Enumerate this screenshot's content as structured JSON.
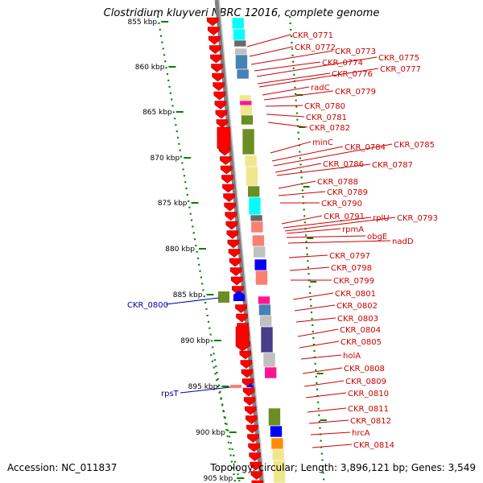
{
  "title": "Clostridium kluyveri NBRC 12016, complete genome",
  "accession_text": "Accession: NC_011837",
  "summary_text": "Topology: circular; Length: 3,896,121 bp; Genes: 3,549",
  "colors": {
    "forward_cds": "#ff0000",
    "reverse_cds": "#0000ff",
    "backbone": "#808080",
    "tick": "#008000",
    "label_forward": "#cc0000",
    "label_reverse": "#0000aa",
    "cog_palette": [
      "#00ffff",
      "#ff1493",
      "#4682b4",
      "#6b8e23",
      "#f0e68c",
      "#c0c0c0",
      "#0000ff",
      "#ff8c00",
      "#483d8b",
      "#fa8072",
      "#696969"
    ]
  },
  "axis_labels": [
    "855 kbp",
    "860 kbp",
    "865 kbp",
    "870 kbp",
    "875 kbp",
    "880 kbp",
    "885 kbp",
    "890 kbp",
    "895 kbp",
    "900 kbp",
    "905 kbp"
  ],
  "forward_labels": [
    "CKR_0771",
    "CKR_0772",
    "CKR_0773",
    "CKR_0774",
    "CKR_0775",
    "CKR_0776",
    "CKR_0777",
    "radC",
    "CKR_0779",
    "CKR_0780",
    "CKR_0781",
    "CKR_0782",
    "minC",
    "CKR_0784",
    "CKR_0785",
    "CKR_0786",
    "CKR_0787",
    "CKR_0788",
    "CKR_0789",
    "CKR_0790",
    "CKR_0791",
    "rplU",
    "CKR_0793",
    "rpmA",
    "obgE",
    "nadD",
    "CKR_0797",
    "CKR_0798",
    "CKR_0799",
    "CKR_0801",
    "CKR_0802",
    "CKR_0803",
    "CKR_0804",
    "CKR_0805",
    "holA",
    "CKR_0808",
    "CKR_0809",
    "CKR_0810",
    "CKR_0811",
    "CKR_0812",
    "hrcA",
    "CKR_0814"
  ],
  "reverse_labels": [
    "CKR_0800",
    "rpsT"
  ]
}
